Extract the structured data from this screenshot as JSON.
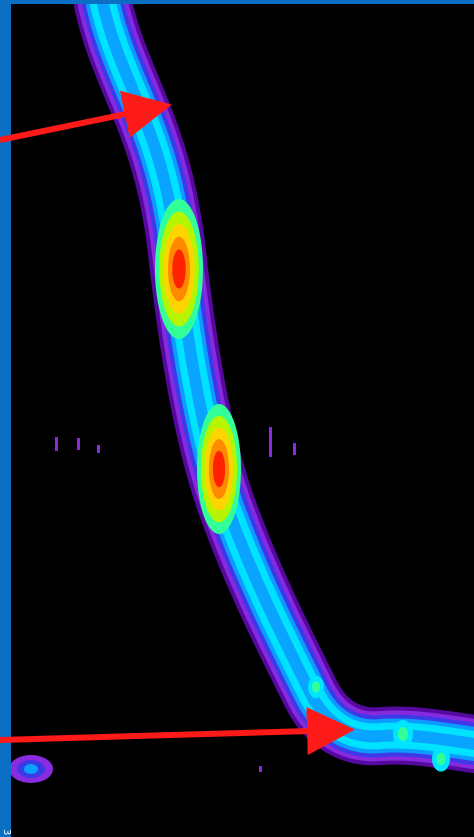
{
  "colors": {
    "background": "#000000",
    "frame": "#0a6fc2",
    "arrow": "#ff1a1a",
    "colormap": [
      "#5a0aa8",
      "#8a2be2",
      "#3a3ae8",
      "#0aa0ff",
      "#00e5ff",
      "#33ff99",
      "#b6f500",
      "#ffd400",
      "#ff8a00",
      "#ff2200"
    ]
  },
  "image": {
    "description_type": "heatmap-contour",
    "bottom_left_label": "3"
  },
  "annotations": [
    {
      "name": "upper-arrow",
      "points_to": "upper-onset"
    },
    {
      "name": "lower-arrow",
      "points_to": "lower-branch"
    }
  ]
}
